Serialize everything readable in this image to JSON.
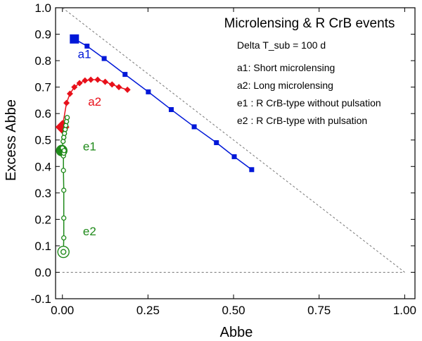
{
  "chart_data": {
    "type": "line",
    "title": "Microlensing & R CrB events",
    "xlabel": "Abbe",
    "ylabel": "Excess Abbe",
    "xlim": [
      -0.02,
      1.03
    ],
    "ylim": [
      -0.1,
      1.0
    ],
    "grid": false,
    "x_ticks": [
      "0.00",
      "0.25",
      "0.50",
      "0.75",
      "1.00"
    ],
    "x_tick_values": [
      0,
      0.25,
      0.5,
      0.75,
      1.0
    ],
    "y_ticks": [
      "-0.1",
      "0.0",
      "0.1",
      "0.2",
      "0.3",
      "0.4",
      "0.5",
      "0.6",
      "0.7",
      "0.8",
      "0.9",
      "1.0"
    ],
    "y_tick_values": [
      -0.1,
      0.0,
      0.1,
      0.2,
      0.3,
      0.4,
      0.5,
      0.6,
      0.7,
      0.8,
      0.9,
      1.0
    ],
    "annotations": [
      "Delta T_sub = 100 d",
      "a1: Short microlensing",
      "a2: Long microlensing",
      "e1 : R CrB-type without pulsation",
      "e2 : R CrB-type with pulsation"
    ],
    "reference_lines": [
      {
        "name": "diagonal",
        "x": [
          0,
          1
        ],
        "y": [
          1,
          0
        ],
        "style": "dashed"
      },
      {
        "name": "zero",
        "x": [
          0,
          1
        ],
        "y": [
          0,
          0
        ],
        "style": "dashed"
      }
    ],
    "series": [
      {
        "name": "a1",
        "color": "#0018d8",
        "marker": "square",
        "x": [
          0.035,
          0.072,
          0.122,
          0.183,
          0.251,
          0.318,
          0.385,
          0.45,
          0.502,
          0.553
        ],
        "y": [
          0.882,
          0.855,
          0.808,
          0.748,
          0.682,
          0.615,
          0.55,
          0.49,
          0.437,
          0.388
        ]
      },
      {
        "name": "a2",
        "color": "#e8101a",
        "marker": "diamond",
        "x": [
          0.0,
          0.012,
          0.022,
          0.035,
          0.05,
          0.066,
          0.083,
          0.103,
          0.125,
          0.145,
          0.165,
          0.19
        ],
        "y": [
          0.549,
          0.64,
          0.675,
          0.7,
          0.715,
          0.725,
          0.728,
          0.728,
          0.72,
          0.71,
          0.7,
          0.69
        ]
      },
      {
        "name": "e1",
        "color": "#1f8a1a",
        "marker": "circle",
        "x": [
          -0.002,
          0.0,
          0.002,
          0.004,
          0.006,
          0.008,
          0.01,
          0.012,
          0.014
        ],
        "y": [
          0.46,
          0.47,
          0.495,
          0.51,
          0.525,
          0.54,
          0.555,
          0.57,
          0.585
        ]
      },
      {
        "name": "e2",
        "color": "#1f8a1a",
        "marker": "open-circle",
        "x": [
          0.003,
          0.004,
          0.004,
          0.004,
          0.003,
          0.003,
          0.004,
          0.005
        ],
        "y": [
          0.077,
          0.13,
          0.205,
          0.31,
          0.385,
          0.44,
          0.45,
          0.46
        ]
      }
    ],
    "series_labels": [
      {
        "name": "a1",
        "x": 0.045,
        "y": 0.81
      },
      {
        "name": "a2",
        "x": 0.075,
        "y": 0.63
      },
      {
        "name": "e1",
        "x": 0.06,
        "y": 0.46
      },
      {
        "name": "e2",
        "x": 0.06,
        "y": 0.14
      }
    ]
  }
}
